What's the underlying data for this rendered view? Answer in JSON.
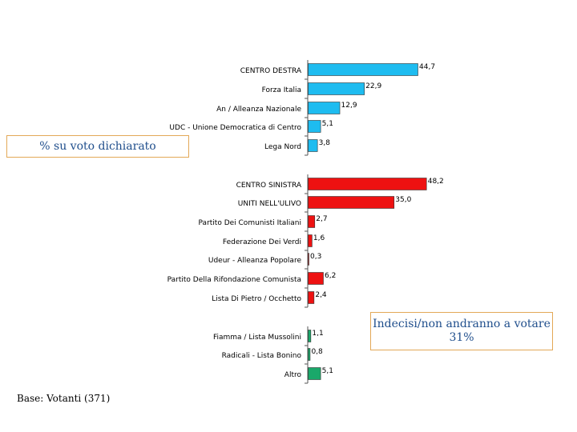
{
  "chart_data": {
    "type": "bar",
    "orientation": "horizontal",
    "categories": [
      "CENTRO DESTRA",
      "Forza Italia",
      "An / Alleanza Nazionale",
      "UDC - Unione Democratica di Centro",
      "Lega Nord",
      "CENTRO SINISTRA",
      "UNITI NELL'ULIVO",
      "Partito Dei Comunisti Italiani",
      "Federazione Dei Verdi",
      "Udeur - Alleanza Popolare",
      "Partito Della Rifondazione Comunista",
      "Lista Di Pietro / Occhetto",
      "Fiamma / Lista Mussolini",
      "Radicali - Lista Bonino",
      "Altro"
    ],
    "values": [
      44.7,
      22.9,
      12.9,
      5.1,
      3.8,
      48.2,
      35.0,
      2.7,
      1.6,
      0.3,
      6.2,
      2.4,
      1.1,
      0.8,
      5.1
    ],
    "value_labels": [
      "44,7",
      "22,9",
      "12,9",
      "5,1",
      "3,8",
      "48,2",
      "35,0",
      "2,7",
      "1,6",
      "0,3",
      "6,2",
      "2,4",
      "1,1",
      "0,8",
      "5,1"
    ],
    "groups": [
      {
        "indices": [
          0,
          1,
          2,
          3,
          4
        ],
        "color": "#1ebcf0"
      },
      {
        "indices": [
          5,
          6,
          7,
          8,
          9,
          10,
          11
        ],
        "color": "#ee1111"
      },
      {
        "indices": [
          12,
          13,
          14
        ],
        "color": "#1aa86a"
      }
    ],
    "xlim": [
      0,
      50
    ],
    "grid": false,
    "legend": "none"
  },
  "annotations": {
    "percent_basis": "% su voto dichiarato",
    "undecided_line1": "Indecisi/non andranno a votare",
    "undecided_line2": "31%",
    "base": "Base: Votanti (371)"
  }
}
